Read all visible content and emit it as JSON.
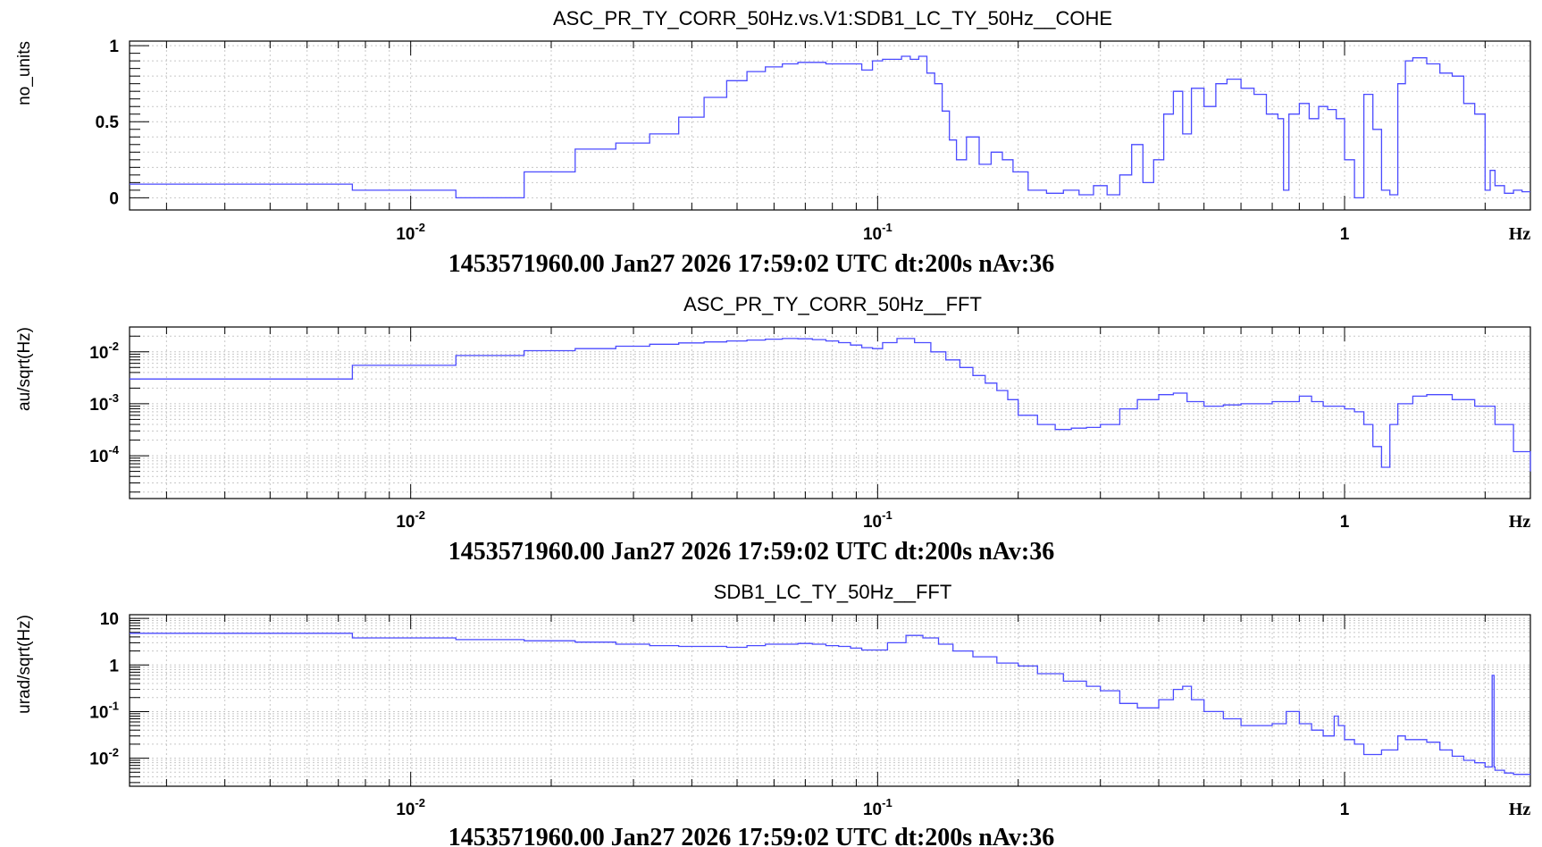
{
  "chart_data": [
    {
      "type": "line",
      "title": "ASC_PR_TY_CORR_50Hz.vs.V1:SDB1_LC_TY_50Hz__COHE",
      "ylabel": "no_units",
      "xlabel": "Hz",
      "footer": "1453571960.00 Jan27 2026 17:59:02 UTC dt:200s nAv:36",
      "xscale": "log",
      "yscale": "linear",
      "xlim": [
        0.0025,
        2.5
      ],
      "ylim": [
        -0.08,
        1.03
      ],
      "grid": true,
      "x_ticks": [
        {
          "base": "10",
          "exp": "-2",
          "value": 0.01
        },
        {
          "base": "10",
          "exp": "-1",
          "value": 0.1
        },
        {
          "base": "1",
          "exp": "",
          "value": 1
        }
      ],
      "y_ticks": [
        {
          "label": "1",
          "value": 1
        },
        {
          "label": "0.5",
          "value": 0.5
        },
        {
          "label": "0",
          "value": 0
        }
      ],
      "series": [
        {
          "color": "#4b4bff",
          "step": true,
          "x": [
            0.0025,
            0.0075,
            0.0125,
            0.0175,
            0.0225,
            0.0275,
            0.0325,
            0.0375,
            0.0425,
            0.0475,
            0.0525,
            0.0575,
            0.0625,
            0.0675,
            0.0725,
            0.0775,
            0.0825,
            0.0875,
            0.0925,
            0.0975,
            0.1025,
            0.1075,
            0.1125,
            0.1175,
            0.1225,
            0.1275,
            0.1325,
            0.1375,
            0.1425,
            0.1475,
            0.155,
            0.165,
            0.175,
            0.185,
            0.195,
            0.21,
            0.23,
            0.25,
            0.27,
            0.29,
            0.31,
            0.33,
            0.35,
            0.37,
            0.39,
            0.41,
            0.43,
            0.45,
            0.47,
            0.5,
            0.53,
            0.56,
            0.6,
            0.64,
            0.68,
            0.72,
            0.74,
            0.76,
            0.8,
            0.84,
            0.88,
            0.92,
            0.96,
            1.0,
            1.05,
            1.1,
            1.15,
            1.2,
            1.25,
            1.3,
            1.35,
            1.4,
            1.5,
            1.6,
            1.7,
            1.8,
            1.9,
            2.0,
            2.05,
            2.1,
            2.2,
            2.3,
            2.4,
            2.5
          ],
          "y": [
            0.09,
            0.05,
            0.0,
            0.17,
            0.32,
            0.36,
            0.42,
            0.53,
            0.66,
            0.77,
            0.83,
            0.86,
            0.88,
            0.89,
            0.89,
            0.88,
            0.88,
            0.88,
            0.84,
            0.9,
            0.91,
            0.91,
            0.93,
            0.91,
            0.93,
            0.82,
            0.75,
            0.57,
            0.38,
            0.25,
            0.4,
            0.22,
            0.3,
            0.25,
            0.17,
            0.05,
            0.03,
            0.05,
            0.02,
            0.08,
            0.02,
            0.15,
            0.35,
            0.1,
            0.25,
            0.55,
            0.7,
            0.42,
            0.72,
            0.6,
            0.75,
            0.78,
            0.72,
            0.68,
            0.55,
            0.52,
            0.05,
            0.55,
            0.62,
            0.52,
            0.6,
            0.58,
            0.52,
            0.25,
            0.0,
            0.68,
            0.45,
            0.05,
            0.02,
            0.75,
            0.9,
            0.92,
            0.88,
            0.82,
            0.8,
            0.62,
            0.55,
            0.05,
            0.18,
            0.08,
            0.03,
            0.05,
            0.04,
            0.04
          ]
        }
      ]
    },
    {
      "type": "line",
      "title": "ASC_PR_TY_CORR_50Hz__FFT",
      "ylabel": "au/sqrt(Hz)",
      "xlabel": "Hz",
      "footer": "1453571960.00 Jan27 2026 17:59:02 UTC dt:200s nAv:36",
      "xscale": "log",
      "yscale": "log",
      "xlim": [
        0.0025,
        2.5
      ],
      "ylim": [
        1.5e-05,
        0.03
      ],
      "grid": true,
      "x_ticks": [
        {
          "base": "10",
          "exp": "-2",
          "value": 0.01
        },
        {
          "base": "10",
          "exp": "-1",
          "value": 0.1
        },
        {
          "base": "1",
          "exp": "",
          "value": 1
        }
      ],
      "y_ticks": [
        {
          "base": "10",
          "exp": "-2",
          "value": 0.01
        },
        {
          "base": "10",
          "exp": "-3",
          "value": 0.001
        },
        {
          "base": "10",
          "exp": "-4",
          "value": 0.0001
        }
      ],
      "series": [
        {
          "color": "#4b4bff",
          "step": true,
          "x": [
            0.0025,
            0.0075,
            0.0125,
            0.0175,
            0.0225,
            0.0275,
            0.0325,
            0.0375,
            0.0425,
            0.0475,
            0.0525,
            0.0575,
            0.0625,
            0.0675,
            0.0725,
            0.0775,
            0.0825,
            0.0875,
            0.0925,
            0.0975,
            0.1025,
            0.11,
            0.12,
            0.13,
            0.14,
            0.15,
            0.16,
            0.17,
            0.18,
            0.19,
            0.2,
            0.22,
            0.24,
            0.26,
            0.28,
            0.3,
            0.33,
            0.36,
            0.4,
            0.43,
            0.46,
            0.5,
            0.55,
            0.6,
            0.7,
            0.8,
            0.85,
            0.9,
            1.0,
            1.05,
            1.1,
            1.15,
            1.2,
            1.25,
            1.3,
            1.4,
            1.5,
            1.7,
            1.9,
            2.1,
            2.3,
            2.5
          ],
          "y": [
            0.003,
            0.0055,
            0.0085,
            0.0105,
            0.0115,
            0.0128,
            0.014,
            0.0148,
            0.0155,
            0.0162,
            0.0168,
            0.0175,
            0.018,
            0.0178,
            0.0172,
            0.0162,
            0.015,
            0.0135,
            0.012,
            0.0115,
            0.015,
            0.018,
            0.015,
            0.01,
            0.007,
            0.005,
            0.0035,
            0.0025,
            0.0018,
            0.0012,
            0.0006,
            0.0004,
            0.00032,
            0.00034,
            0.00035,
            0.0004,
            0.0008,
            0.0012,
            0.0015,
            0.0016,
            0.0011,
            0.0009,
            0.00095,
            0.001,
            0.0011,
            0.0014,
            0.0011,
            0.0009,
            0.0008,
            0.0007,
            0.0004,
            0.00015,
            6e-05,
            0.0004,
            0.001,
            0.0014,
            0.0015,
            0.0012,
            0.0009,
            0.0004,
            0.00012,
            5e-05
          ]
        }
      ]
    },
    {
      "type": "line",
      "title": "SDB1_LC_TY_50Hz__FFT",
      "ylabel": "urad/sqrt(Hz)",
      "xlabel": "Hz",
      "footer": "1453571960.00 Jan27 2026 17:59:02 UTC dt:200s nAv:36",
      "xscale": "log",
      "yscale": "log",
      "xlim": [
        0.0025,
        2.5
      ],
      "ylim": [
        0.0025,
        12
      ],
      "grid": true,
      "x_ticks": [
        {
          "base": "10",
          "exp": "-2",
          "value": 0.01
        },
        {
          "base": "10",
          "exp": "-1",
          "value": 0.1
        },
        {
          "base": "1",
          "exp": "",
          "value": 1
        }
      ],
      "y_ticks": [
        {
          "base": "10",
          "exp": "",
          "value": 10
        },
        {
          "base": "1",
          "exp": "",
          "value": 1
        },
        {
          "base": "10",
          "exp": "-1",
          "value": 0.1
        },
        {
          "base": "10",
          "exp": "-2",
          "value": 0.01
        }
      ],
      "series": [
        {
          "color": "#4b4bff",
          "step": true,
          "x": [
            0.0025,
            0.0075,
            0.0125,
            0.0175,
            0.0225,
            0.0275,
            0.0325,
            0.0375,
            0.0425,
            0.0475,
            0.0525,
            0.0575,
            0.0625,
            0.0675,
            0.0725,
            0.0775,
            0.0825,
            0.0875,
            0.0925,
            0.0975,
            0.105,
            0.115,
            0.125,
            0.135,
            0.145,
            0.16,
            0.18,
            0.2,
            0.22,
            0.25,
            0.28,
            0.3,
            0.33,
            0.36,
            0.4,
            0.43,
            0.45,
            0.47,
            0.5,
            0.55,
            0.6,
            0.7,
            0.75,
            0.8,
            0.85,
            0.9,
            0.95,
            0.97,
            1.0,
            1.05,
            1.1,
            1.2,
            1.3,
            1.35,
            1.4,
            1.5,
            1.6,
            1.7,
            1.8,
            1.9,
            2.0,
            2.05,
            2.07,
            2.09,
            2.1,
            2.2,
            2.3,
            2.5
          ],
          "y": [
            4.8,
            3.8,
            3.5,
            3.3,
            3.1,
            2.8,
            2.6,
            2.5,
            2.5,
            2.4,
            2.6,
            2.8,
            2.8,
            2.9,
            2.8,
            2.6,
            2.5,
            2.3,
            2.1,
            2.1,
            3.0,
            4.3,
            3.8,
            2.8,
            2.0,
            1.5,
            1.1,
            0.95,
            0.65,
            0.45,
            0.35,
            0.28,
            0.15,
            0.12,
            0.18,
            0.3,
            0.35,
            0.18,
            0.1,
            0.07,
            0.05,
            0.055,
            0.1,
            0.055,
            0.04,
            0.03,
            0.08,
            0.05,
            0.025,
            0.02,
            0.012,
            0.015,
            0.03,
            0.025,
            0.025,
            0.022,
            0.015,
            0.011,
            0.009,
            0.008,
            0.0065,
            0.0065,
            0.6,
            0.0065,
            0.0055,
            0.0048,
            0.0045,
            0.0045
          ]
        }
      ]
    }
  ]
}
